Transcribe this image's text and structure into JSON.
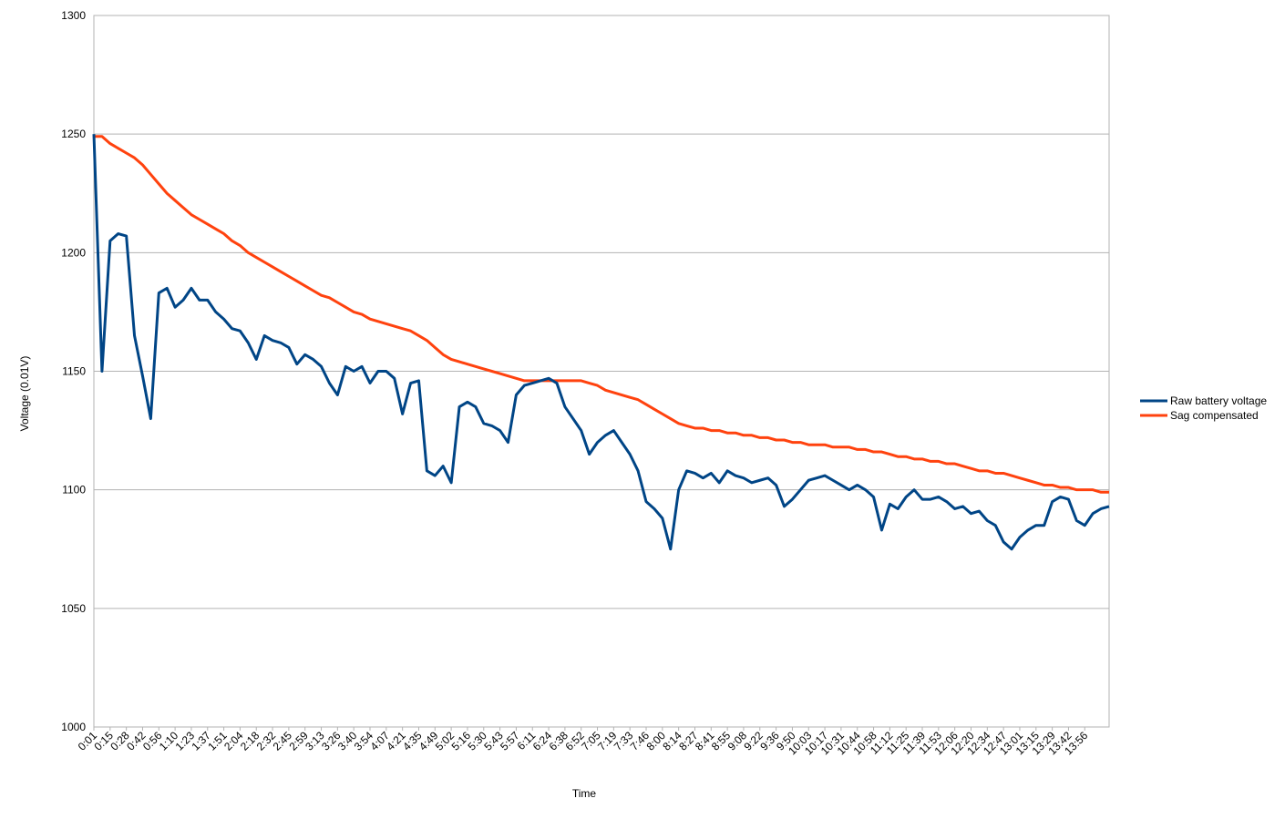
{
  "chart_data": {
    "type": "line",
    "y_label": "Voltage (0.01V)",
    "x_label": "Time",
    "categories": [
      "0:01",
      null,
      "0:15",
      null,
      "0:28",
      null,
      "0:42",
      null,
      "0:56",
      null,
      "1:10",
      null,
      "1:23",
      null,
      "1:37",
      null,
      "1:51",
      null,
      "2:04",
      null,
      "2:18",
      null,
      "2:32",
      null,
      "2:45",
      null,
      "2:59",
      null,
      "3:13",
      null,
      "3:26",
      null,
      "3:40",
      null,
      "3:54",
      null,
      "4:07",
      null,
      "4:21",
      null,
      "4:35",
      null,
      "4:49",
      null,
      "5:02",
      null,
      "5:16",
      null,
      "5:30",
      null,
      "5:43",
      null,
      "5:57",
      null,
      "6:11",
      null,
      "6:24",
      null,
      "6:38",
      null,
      "6:52",
      null,
      "7:05",
      null,
      "7:19",
      null,
      "7:33",
      null,
      "7:46",
      null,
      "8:00",
      null,
      "8:14",
      null,
      "8:27",
      null,
      "8:41",
      null,
      "8:55",
      null,
      "9:08",
      null,
      "9:22",
      null,
      "9:36",
      null,
      "9:50",
      null,
      "10:03",
      null,
      "10:17",
      null,
      "10:31",
      null,
      "10:44",
      null,
      "10:58",
      null,
      "11:12",
      null,
      "11:25",
      null,
      "11:39",
      null,
      "11:53",
      null,
      "12:06",
      null,
      "12:20",
      null,
      "12:34",
      null,
      "12:47",
      null,
      "13:01",
      null,
      "13:15",
      null,
      "13:29",
      null,
      "13:42",
      null,
      "13:56",
      null,
      null,
      null
    ],
    "series": [
      {
        "name": "Raw battery voltage",
        "color": "#004586",
        "values": [
          1250,
          1150,
          1205,
          1208,
          1207,
          1165,
          1148,
          1130,
          1183,
          1185,
          1177,
          1180,
          1185,
          1180,
          1180,
          1175,
          1172,
          1168,
          1167,
          1162,
          1155,
          1165,
          1163,
          1162,
          1160,
          1153,
          1157,
          1155,
          1152,
          1145,
          1140,
          1152,
          1150,
          1152,
          1145,
          1150,
          1150,
          1147,
          1132,
          1145,
          1146,
          1108,
          1106,
          1110,
          1103,
          1135,
          1137,
          1135,
          1128,
          1127,
          1125,
          1120,
          1140,
          1144,
          1145,
          1146,
          1147,
          1145,
          1135,
          1130,
          1125,
          1115,
          1120,
          1123,
          1125,
          1120,
          1115,
          1108,
          1095,
          1092,
          1088,
          1075,
          1100,
          1108,
          1107,
          1105,
          1107,
          1103,
          1108,
          1106,
          1105,
          1103,
          1104,
          1105,
          1102,
          1093,
          1096,
          1100,
          1104,
          1105,
          1106,
          1104,
          1102,
          1100,
          1102,
          1100,
          1097,
          1083,
          1094,
          1092,
          1097,
          1100,
          1096,
          1096,
          1097,
          1095,
          1092,
          1093,
          1090,
          1091,
          1087,
          1085,
          1078,
          1075,
          1080,
          1083,
          1085,
          1085,
          1095,
          1097,
          1096,
          1087,
          1085,
          1090,
          1092,
          1093
        ]
      },
      {
        "name": "Sag compensated",
        "color": "#ff420e",
        "values": [
          1249,
          1249,
          1246,
          1244,
          1242,
          1240,
          1237,
          1233,
          1229,
          1225,
          1222,
          1219,
          1216,
          1214,
          1212,
          1210,
          1208,
          1205,
          1203,
          1200,
          1198,
          1196,
          1194,
          1192,
          1190,
          1188,
          1186,
          1184,
          1182,
          1181,
          1179,
          1177,
          1175,
          1174,
          1172,
          1171,
          1170,
          1169,
          1168,
          1167,
          1165,
          1163,
          1160,
          1157,
          1155,
          1154,
          1153,
          1152,
          1151,
          1150,
          1149,
          1148,
          1147,
          1146,
          1146,
          1146,
          1146,
          1146,
          1146,
          1146,
          1146,
          1145,
          1144,
          1142,
          1141,
          1140,
          1139,
          1138,
          1136,
          1134,
          1132,
          1130,
          1128,
          1127,
          1126,
          1126,
          1125,
          1125,
          1124,
          1124,
          1123,
          1123,
          1122,
          1122,
          1121,
          1121,
          1120,
          1120,
          1119,
          1119,
          1119,
          1118,
          1118,
          1118,
          1117,
          1117,
          1116,
          1116,
          1115,
          1114,
          1114,
          1113,
          1113,
          1112,
          1112,
          1111,
          1111,
          1110,
          1109,
          1108,
          1108,
          1107,
          1107,
          1106,
          1105,
          1104,
          1103,
          1102,
          1102,
          1101,
          1101,
          1100,
          1100,
          1100,
          1099,
          1099
        ]
      }
    ],
    "ylim": [
      1000,
      1300
    ],
    "yticks": [
      1000,
      1050,
      1100,
      1150,
      1200,
      1250,
      1300
    ],
    "grid": true,
    "legend": "right"
  }
}
